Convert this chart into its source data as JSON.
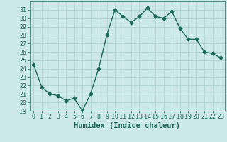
{
  "x": [
    0,
    1,
    2,
    3,
    4,
    5,
    6,
    7,
    8,
    9,
    10,
    11,
    12,
    13,
    14,
    15,
    16,
    17,
    18,
    19,
    20,
    21,
    22,
    23
  ],
  "y": [
    24.5,
    21.8,
    21.0,
    20.8,
    20.2,
    20.5,
    19.0,
    21.0,
    24.0,
    28.0,
    31.0,
    30.2,
    29.5,
    30.2,
    31.2,
    30.2,
    30.0,
    30.8,
    28.8,
    27.5,
    27.5,
    26.0,
    25.8,
    25.3
  ],
  "line_color": "#1a6b5a",
  "marker": "D",
  "marker_size": 2.5,
  "bg_color": "#cce8e8",
  "grid_color": "#aacfcf",
  "xlabel": "Humidex (Indice chaleur)",
  "ylim": [
    19,
    32
  ],
  "xlim": [
    -0.5,
    23.5
  ],
  "yticks": [
    19,
    20,
    21,
    22,
    23,
    24,
    25,
    26,
    27,
    28,
    29,
    30,
    31
  ],
  "xticks": [
    0,
    1,
    2,
    3,
    4,
    5,
    6,
    7,
    8,
    9,
    10,
    11,
    12,
    13,
    14,
    15,
    16,
    17,
    18,
    19,
    20,
    21,
    22,
    23
  ],
  "tick_fontsize": 6.0,
  "xlabel_fontsize": 7.5,
  "line_width": 1.0
}
